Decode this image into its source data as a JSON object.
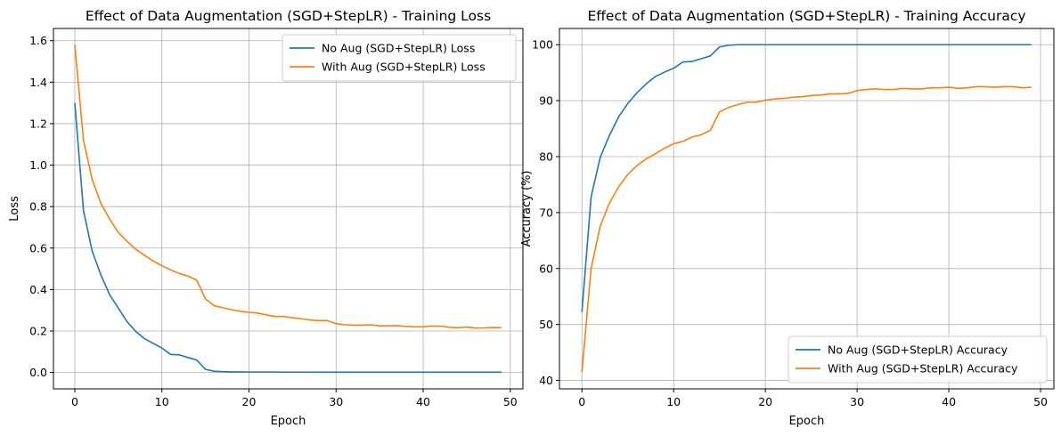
{
  "chart_data": [
    {
      "type": "line",
      "title": "Effect of Data Augmentation (SGD+StepLR) - Training Loss",
      "xlabel": "Epoch",
      "ylabel": "Loss",
      "xlim": [
        -2.45,
        51.45
      ],
      "ylim": [
        -0.079,
        1.659
      ],
      "xticks": [
        0,
        10,
        20,
        30,
        40,
        50
      ],
      "yticks": [
        0.0,
        0.2,
        0.4,
        0.6,
        0.8,
        1.0,
        1.2,
        1.4,
        1.6
      ],
      "ytick_labels": [
        "0.0",
        "0.2",
        "0.4",
        "0.6",
        "0.8",
        "1.0",
        "1.2",
        "1.4",
        "1.6"
      ],
      "grid": true,
      "legend_position": "upper right",
      "series": [
        {
          "name": "No Aug (SGD+StepLR) Loss",
          "color": "#1f77b4",
          "x": [
            0,
            1,
            2,
            3,
            4,
            5,
            6,
            7,
            8,
            9,
            10,
            11,
            12,
            13,
            14,
            15,
            16,
            17,
            18,
            19,
            20,
            21,
            22,
            23,
            24,
            25,
            26,
            27,
            28,
            29,
            30,
            31,
            32,
            33,
            34,
            35,
            36,
            37,
            38,
            39,
            40,
            41,
            42,
            43,
            44,
            45,
            46,
            47,
            48,
            49
          ],
          "values": [
            1.3,
            0.78,
            0.585,
            0.47,
            0.375,
            0.31,
            0.245,
            0.198,
            0.163,
            0.14,
            0.118,
            0.087,
            0.085,
            0.072,
            0.06,
            0.015,
            0.006,
            0.004,
            0.003,
            0.003,
            0.002,
            0.002,
            0.002,
            0.002,
            0.0015,
            0.0015,
            0.0015,
            0.0015,
            0.0012,
            0.0012,
            0.001,
            0.001,
            0.001,
            0.001,
            0.001,
            0.001,
            0.001,
            0.001,
            0.001,
            0.001,
            0.001,
            0.001,
            0.001,
            0.001,
            0.001,
            0.001,
            0.001,
            0.001,
            0.001,
            0.001
          ]
        },
        {
          "name": "With Aug (SGD+StepLR) Loss",
          "color": "#ff7f0e",
          "x": [
            0,
            1,
            2,
            3,
            4,
            5,
            6,
            7,
            8,
            9,
            10,
            11,
            12,
            13,
            14,
            15,
            16,
            17,
            18,
            19,
            20,
            21,
            22,
            23,
            24,
            25,
            26,
            27,
            28,
            29,
            30,
            31,
            32,
            33,
            34,
            35,
            36,
            37,
            38,
            39,
            40,
            41,
            42,
            43,
            44,
            45,
            46,
            47,
            48,
            49
          ],
          "values": [
            1.58,
            1.12,
            0.93,
            0.815,
            0.74,
            0.675,
            0.632,
            0.594,
            0.565,
            0.537,
            0.515,
            0.495,
            0.477,
            0.465,
            0.445,
            0.355,
            0.322,
            0.312,
            0.303,
            0.295,
            0.29,
            0.286,
            0.278,
            0.27,
            0.27,
            0.264,
            0.259,
            0.253,
            0.25,
            0.25,
            0.235,
            0.23,
            0.228,
            0.228,
            0.23,
            0.225,
            0.225,
            0.226,
            0.222,
            0.22,
            0.22,
            0.224,
            0.223,
            0.218,
            0.216,
            0.219,
            0.214,
            0.215,
            0.217,
            0.216
          ]
        }
      ]
    },
    {
      "type": "line",
      "title": "Effect of Data Augmentation (SGD+StepLR) - Training Accuracy",
      "xlabel": "Epoch",
      "ylabel": "Accuracy (%)",
      "xlim": [
        -2.45,
        51.45
      ],
      "ylim": [
        38.5,
        102.9
      ],
      "xticks": [
        0,
        10,
        20,
        30,
        40,
        50
      ],
      "yticks": [
        40,
        50,
        60,
        70,
        80,
        90,
        100
      ],
      "ytick_labels": [
        "40",
        "50",
        "60",
        "70",
        "80",
        "90",
        "100"
      ],
      "grid": true,
      "legend_position": "lower right",
      "series": [
        {
          "name": "No Aug (SGD+StepLR) Accuracy",
          "color": "#1f77b4",
          "x": [
            0,
            1,
            2,
            3,
            4,
            5,
            6,
            7,
            8,
            9,
            10,
            11,
            12,
            13,
            14,
            15,
            16,
            17,
            18,
            19,
            20,
            21,
            22,
            23,
            24,
            25,
            26,
            27,
            28,
            29,
            30,
            31,
            32,
            33,
            34,
            35,
            36,
            37,
            38,
            39,
            40,
            41,
            42,
            43,
            44,
            45,
            46,
            47,
            48,
            49
          ],
          "values": [
            52.2,
            72.8,
            79.9,
            83.8,
            87.1,
            89.5,
            91.4,
            93.0,
            94.3,
            95.1,
            95.8,
            96.9,
            97.0,
            97.5,
            98.0,
            99.6,
            99.9,
            100,
            100,
            100,
            100,
            100,
            100,
            100,
            100,
            100,
            100,
            100,
            100,
            100,
            100,
            100,
            100,
            100,
            100,
            100,
            100,
            100,
            100,
            100,
            100,
            100,
            100,
            100,
            100,
            100,
            100,
            100,
            100,
            100
          ]
        },
        {
          "name": "With Aug (SGD+StepLR) Accuracy",
          "color": "#ff7f0e",
          "x": [
            0,
            1,
            2,
            3,
            4,
            5,
            6,
            7,
            8,
            9,
            10,
            11,
            12,
            13,
            14,
            15,
            16,
            17,
            18,
            19,
            20,
            21,
            22,
            23,
            24,
            25,
            26,
            27,
            28,
            29,
            30,
            31,
            32,
            33,
            34,
            35,
            36,
            37,
            38,
            39,
            40,
            41,
            42,
            43,
            44,
            45,
            46,
            47,
            48,
            49
          ],
          "values": [
            41.5,
            60.0,
            67.6,
            71.7,
            74.6,
            76.8,
            78.4,
            79.6,
            80.5,
            81.5,
            82.3,
            82.7,
            83.5,
            83.9,
            84.7,
            88.0,
            88.8,
            89.3,
            89.7,
            89.7,
            90.1,
            90.3,
            90.4,
            90.6,
            90.7,
            90.9,
            91.0,
            91.2,
            91.2,
            91.3,
            91.8,
            92.0,
            92.1,
            92.0,
            92.0,
            92.2,
            92.1,
            92.1,
            92.3,
            92.3,
            92.4,
            92.2,
            92.3,
            92.5,
            92.5,
            92.4,
            92.5,
            92.5,
            92.3,
            92.4
          ]
        }
      ]
    }
  ]
}
